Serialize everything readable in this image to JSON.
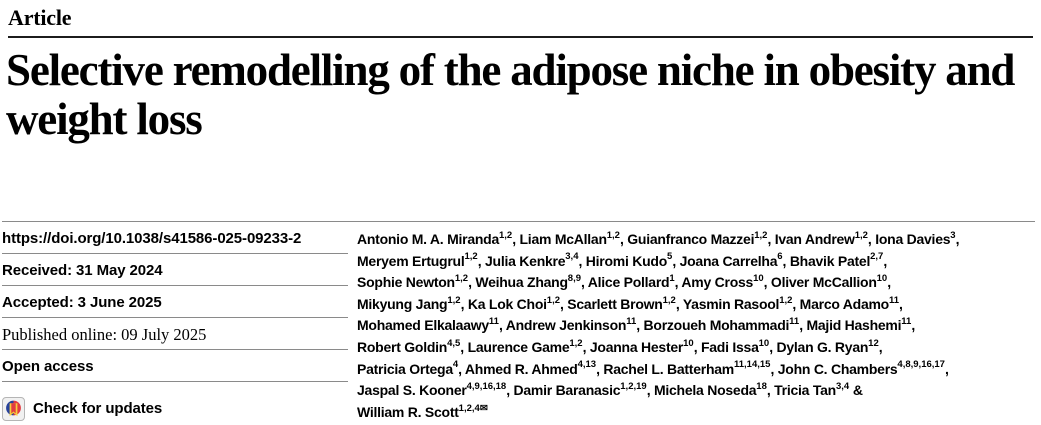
{
  "header": {
    "kicker": "Article",
    "title": "Selective remodelling of the adipose niche in obesity and weight loss"
  },
  "meta": {
    "doi": "https://doi.org/10.1038/s41586-025-09233-2",
    "received": "Received: 31 May 2024",
    "accepted": "Accepted: 3 June 2025",
    "published": "Published online: 09 July 2025",
    "open_access": "Open access",
    "check_updates": "Check for updates",
    "crossmark_colors": {
      "frame_fill": "#f1f1f1",
      "frame_stroke": "#b5b5b5",
      "blue": "#27429b",
      "red": "#e23c41",
      "yellow": "#f7cf3d"
    }
  },
  "authors": {
    "mail_icon": "✉",
    "lines": [
      [
        {
          "t": "Antonio M. A. Miranda"
        },
        {
          "s": "1,2"
        },
        {
          "t": ", Liam McAllan"
        },
        {
          "s": "1,2"
        },
        {
          "t": ", Guianfranco Mazzei"
        },
        {
          "s": "1,2"
        },
        {
          "t": ", Ivan Andrew"
        },
        {
          "s": "1,2"
        },
        {
          "t": ", Iona Davies"
        },
        {
          "s": "3"
        },
        {
          "t": ","
        }
      ],
      [
        {
          "t": "Meryem Ertugrul"
        },
        {
          "s": "1,2"
        },
        {
          "t": ", Julia Kenkre"
        },
        {
          "s": "3,4"
        },
        {
          "t": ", Hiromi Kudo"
        },
        {
          "s": "5"
        },
        {
          "t": ", Joana Carrelha"
        },
        {
          "s": "6"
        },
        {
          "t": ", Bhavik Patel"
        },
        {
          "s": "2,7"
        },
        {
          "t": ","
        }
      ],
      [
        {
          "t": "Sophie Newton"
        },
        {
          "s": "1,2"
        },
        {
          "t": ", Weihua Zhang"
        },
        {
          "s": "8,9"
        },
        {
          "t": ", Alice Pollard"
        },
        {
          "s": "1"
        },
        {
          "t": ", Amy Cross"
        },
        {
          "s": "10"
        },
        {
          "t": ", Oliver McCallion"
        },
        {
          "s": "10"
        },
        {
          "t": ","
        }
      ],
      [
        {
          "t": "Mikyung Jang"
        },
        {
          "s": "1,2"
        },
        {
          "t": ", Ka Lok Choi"
        },
        {
          "s": "1,2"
        },
        {
          "t": ", Scarlett Brown"
        },
        {
          "s": "1,2"
        },
        {
          "t": ", Yasmin Rasool"
        },
        {
          "s": "1,2"
        },
        {
          "t": ", Marco Adamo"
        },
        {
          "s": "11"
        },
        {
          "t": ","
        }
      ],
      [
        {
          "t": "Mohamed Elkalaawy"
        },
        {
          "s": "11"
        },
        {
          "t": ", Andrew Jenkinson"
        },
        {
          "s": "11"
        },
        {
          "t": ", Borzoueh Mohammadi"
        },
        {
          "s": "11"
        },
        {
          "t": ", Majid Hashemi"
        },
        {
          "s": "11"
        },
        {
          "t": ","
        }
      ],
      [
        {
          "t": "Robert Goldin"
        },
        {
          "s": "4,5"
        },
        {
          "t": ", Laurence Game"
        },
        {
          "s": "1,2"
        },
        {
          "t": ", Joanna Hester"
        },
        {
          "s": "10"
        },
        {
          "t": ", Fadi Issa"
        },
        {
          "s": "10"
        },
        {
          "t": ", Dylan G. Ryan"
        },
        {
          "s": "12"
        },
        {
          "t": ","
        }
      ],
      [
        {
          "t": "Patricia Ortega"
        },
        {
          "s": "4"
        },
        {
          "t": ", Ahmed R. Ahmed"
        },
        {
          "s": "4,13"
        },
        {
          "t": ", Rachel L. Batterham"
        },
        {
          "s": "11,14,15"
        },
        {
          "t": ", John C. Chambers"
        },
        {
          "s": "4,8,9,16,17"
        },
        {
          "t": ","
        }
      ],
      [
        {
          "t": "Jaspal S. Kooner"
        },
        {
          "s": "4,9,16,18"
        },
        {
          "t": ", Damir Baranasic"
        },
        {
          "s": "1,2,19"
        },
        {
          "t": ", Michela Noseda"
        },
        {
          "s": "18"
        },
        {
          "t": ", Tricia Tan"
        },
        {
          "s": "3,4"
        },
        {
          "t": " &"
        }
      ],
      [
        {
          "t": "William R. Scott"
        },
        {
          "s": "1,2,4"
        },
        {
          "m": true
        }
      ]
    ]
  }
}
